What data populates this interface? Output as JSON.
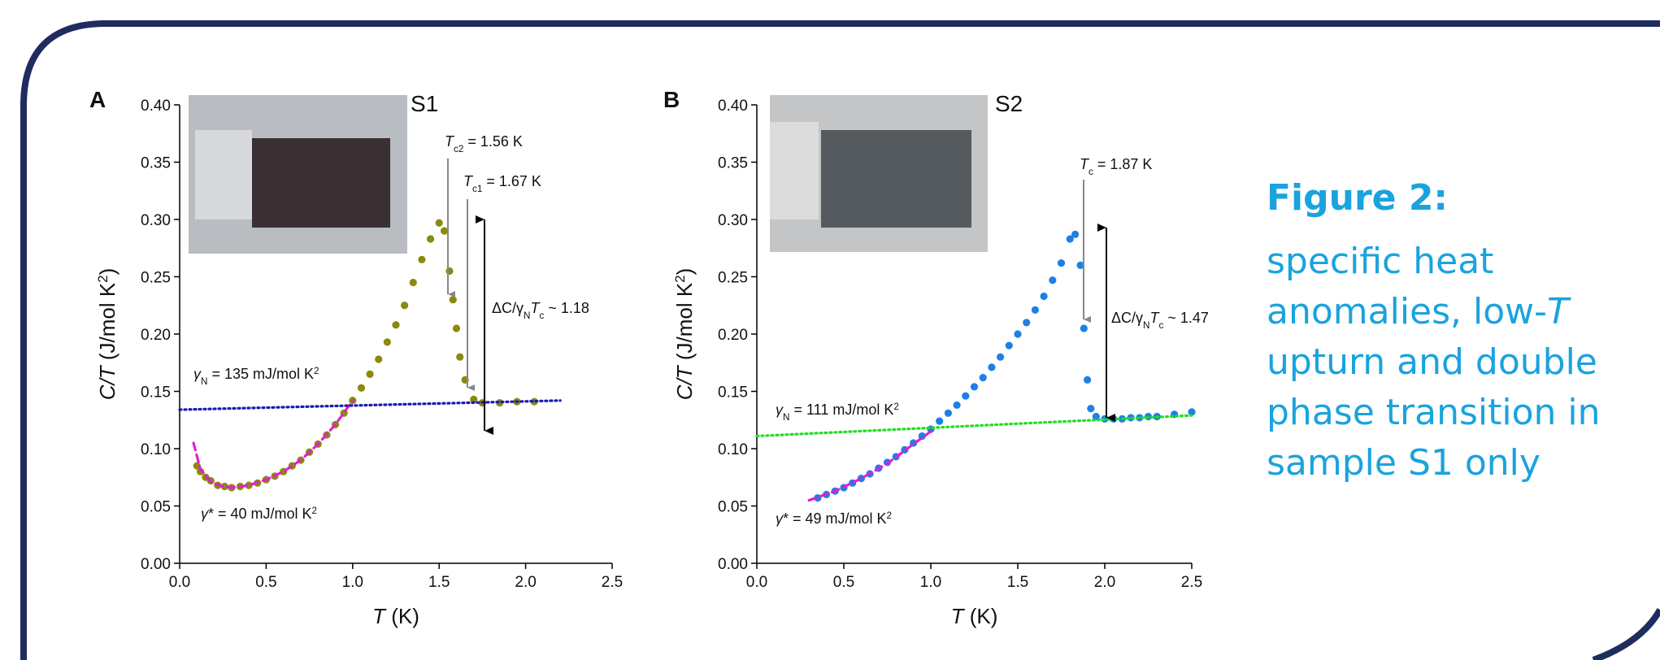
{
  "chart_data": [
    {
      "type": "scatter",
      "panel": "A",
      "sample": "S1",
      "xlabel": [
        {
          "text": "T",
          "italic": true
        },
        {
          "text": " (K)"
        }
      ],
      "ylabel": [
        {
          "text": "C/T",
          "italic": true
        },
        {
          "text": " (J/mol K"
        },
        {
          "text": "2",
          "sup": true
        },
        {
          "text": ")"
        }
      ],
      "xlim": [
        0,
        2.5
      ],
      "ylim": [
        0,
        0.4
      ],
      "xticks": [
        {
          "value": 0,
          "label": "0.0"
        },
        0.5,
        {
          "value": 1,
          "label": "1.0"
        },
        1.5,
        {
          "value": 2,
          "label": "2.0"
        },
        2.5
      ],
      "yticks": [
        {
          "value": 0,
          "label": "0.00"
        },
        0.05,
        {
          "value": 0.1,
          "label": "0.10"
        },
        0.15,
        {
          "value": 0.2,
          "label": "0.20"
        },
        0.25,
        {
          "value": 0.3,
          "label": "0.30"
        },
        0.35,
        {
          "value": 0.4,
          "label": "0.40"
        }
      ],
      "series": [
        {
          "mode": "points",
          "color": "#8a8a0c",
          "x": [
            0.1,
            0.12,
            0.15,
            0.18,
            0.22,
            0.26,
            0.3,
            0.35,
            0.4,
            0.45,
            0.5,
            0.55,
            0.6,
            0.65,
            0.7,
            0.75,
            0.8,
            0.85,
            0.9,
            0.95,
            1.0,
            1.05,
            1.1,
            1.15,
            1.2,
            1.25,
            1.3,
            1.35,
            1.4,
            1.45,
            1.5,
            1.53,
            1.56,
            1.58,
            1.6,
            1.62,
            1.65,
            1.7,
            1.75,
            1.85,
            1.95,
            2.05
          ],
          "values": [
            0.085,
            0.08,
            0.075,
            0.072,
            0.068,
            0.067,
            0.066,
            0.067,
            0.068,
            0.07,
            0.073,
            0.076,
            0.08,
            0.085,
            0.09,
            0.097,
            0.104,
            0.112,
            0.121,
            0.131,
            0.142,
            0.153,
            0.165,
            0.178,
            0.193,
            0.208,
            0.225,
            0.245,
            0.265,
            0.283,
            0.297,
            0.29,
            0.255,
            0.23,
            0.205,
            0.18,
            0.16,
            0.143,
            0.14,
            0.14,
            0.141,
            0.141
          ]
        },
        {
          "mode": "line",
          "dash": "dashed",
          "color": "#e020d0",
          "x": [
            0.08,
            0.12,
            0.18,
            0.25,
            0.3,
            0.4,
            0.5,
            0.6,
            0.7,
            0.8,
            0.9,
            1.0
          ],
          "values": [
            0.105,
            0.082,
            0.071,
            0.067,
            0.066,
            0.068,
            0.073,
            0.08,
            0.09,
            0.104,
            0.121,
            0.142
          ]
        },
        {
          "mode": "line",
          "dash": "dotted",
          "color": "#1a1ab0",
          "x": [
            0,
            2.2
          ],
          "values": [
            0.134,
            0.142
          ]
        }
      ],
      "annotations": [
        [
          {
            "text": "T",
            "italic": true
          },
          {
            "text": "c2",
            "sub": true
          },
          {
            "text": " = 1.56 K"
          }
        ],
        [
          {
            "text": "T",
            "italic": true
          },
          {
            "text": "c1",
            "sub": true
          },
          {
            "text": " = 1.67 K"
          }
        ],
        [
          {
            "text": "ΔC/γ"
          },
          {
            "text": "N",
            "sub": true
          },
          {
            "text": "T",
            "italic": true
          },
          {
            "text": "c",
            "sub": true
          },
          {
            "text": " ~ 1.18"
          }
        ],
        [
          {
            "text": "γ",
            "italic": true
          },
          {
            "text": "N",
            "sub": true
          },
          {
            "text": " = 135 mJ/mol K"
          },
          {
            "text": "2",
            "sup": true
          }
        ],
        [
          {
            "text": "γ",
            "italic": true
          },
          {
            "text": "* = 40 mJ/mol K"
          },
          {
            "text": "2",
            "sup": true
          }
        ]
      ]
    },
    {
      "type": "scatter",
      "panel": "B",
      "sample": "S2",
      "xlabel": [
        {
          "text": "T",
          "italic": true
        },
        {
          "text": " (K)"
        }
      ],
      "ylabel": [
        {
          "text": "C/T",
          "italic": true
        },
        {
          "text": " (J/mol K"
        },
        {
          "text": "2",
          "sup": true
        },
        {
          "text": ")"
        }
      ],
      "xlim": [
        0,
        2.5
      ],
      "ylim": [
        0,
        0.4
      ],
      "xticks": [
        {
          "value": 0,
          "label": "0.0"
        },
        0.5,
        {
          "value": 1,
          "label": "1.0"
        },
        1.5,
        {
          "value": 2,
          "label": "2.0"
        },
        2.5
      ],
      "yticks": [
        {
          "value": 0,
          "label": "0.00"
        },
        0.05,
        {
          "value": 0.1,
          "label": "0.10"
        },
        0.15,
        {
          "value": 0.2,
          "label": "0.20"
        },
        0.25,
        {
          "value": 0.3,
          "label": "0.30"
        },
        0.35,
        {
          "value": 0.4,
          "label": "0.40"
        }
      ],
      "series": [
        {
          "mode": "points",
          "color": "#1e80e6",
          "x": [
            0.35,
            0.4,
            0.45,
            0.5,
            0.55,
            0.6,
            0.65,
            0.7,
            0.75,
            0.8,
            0.85,
            0.9,
            0.95,
            1.0,
            1.05,
            1.1,
            1.15,
            1.2,
            1.25,
            1.3,
            1.35,
            1.4,
            1.45,
            1.5,
            1.55,
            1.6,
            1.65,
            1.7,
            1.75,
            1.8,
            1.83,
            1.86,
            1.88,
            1.9,
            1.92,
            1.95,
            2.0,
            2.05,
            2.1,
            2.15,
            2.2,
            2.25,
            2.3,
            2.4,
            2.5
          ],
          "values": [
            0.057,
            0.06,
            0.063,
            0.066,
            0.07,
            0.074,
            0.078,
            0.083,
            0.088,
            0.093,
            0.099,
            0.105,
            0.111,
            0.117,
            0.124,
            0.131,
            0.138,
            0.146,
            0.154,
            0.162,
            0.171,
            0.18,
            0.19,
            0.2,
            0.21,
            0.221,
            0.233,
            0.247,
            0.262,
            0.283,
            0.287,
            0.26,
            0.205,
            0.16,
            0.135,
            0.128,
            0.126,
            0.126,
            0.126,
            0.127,
            0.127,
            0.128,
            0.128,
            0.13,
            0.132
          ]
        },
        {
          "mode": "line",
          "dash": "dashed",
          "color": "#e020d0",
          "x": [
            0.3,
            0.45,
            0.6,
            0.75,
            0.9,
            1.0
          ],
          "values": [
            0.055,
            0.063,
            0.074,
            0.087,
            0.104,
            0.115
          ]
        },
        {
          "mode": "line",
          "dash": "dotted",
          "color": "#22dd22",
          "x": [
            0,
            2.5
          ],
          "values": [
            0.111,
            0.129
          ]
        }
      ],
      "annotations": [
        [
          {
            "text": "T",
            "italic": true
          },
          {
            "text": "c",
            "sub": true
          },
          {
            "text": " = 1.87 K"
          }
        ],
        [
          {
            "text": "ΔC/γ"
          },
          {
            "text": "N",
            "sub": true
          },
          {
            "text": "T",
            "italic": true
          },
          {
            "text": "c",
            "sub": true
          },
          {
            "text": " ~ 1.47"
          }
        ],
        [
          {
            "text": "γ",
            "italic": true
          },
          {
            "text": "N",
            "sub": true
          },
          {
            "text": " = 111 mJ/mol K"
          },
          {
            "text": "2",
            "sup": true
          }
        ],
        [
          {
            "text": "γ",
            "italic": true
          },
          {
            "text": "* = 49 mJ/mol K"
          },
          {
            "text": "2",
            "sup": true
          }
        ]
      ]
    }
  ],
  "caption": {
    "heading": "Figure 2:",
    "lines": [
      [
        {
          "text": " specific heat"
        }
      ],
      [
        {
          "text": "anomalies, low-"
        },
        {
          "text": "T",
          "italic": true
        }
      ],
      [
        {
          "text": "upturn and double"
        }
      ],
      [
        {
          "text": "phase transition in"
        }
      ],
      [
        {
          "text": "sample S1 only"
        }
      ]
    ]
  }
}
